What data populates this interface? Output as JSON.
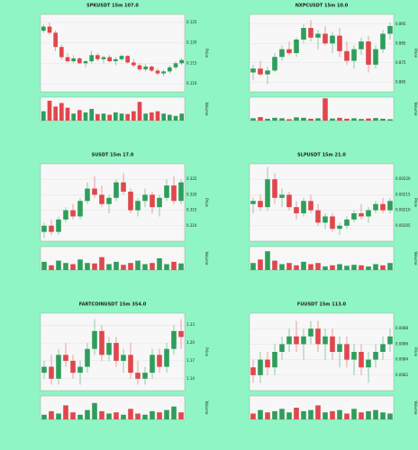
{
  "chart_data": [
    {
      "type": "candlestick",
      "title": "SPKUSDT 15m 107.0",
      "ylabel": "Price",
      "vlabel": "Volume",
      "up_color": "#2e9e5b",
      "down_color": "#e0474c",
      "grid": true,
      "ylim": [
        0.108,
        0.127
      ],
      "yticks": [
        {
          "value": 0.11,
          "label": "0.110"
        },
        {
          "value": 0.115,
          "label": "0.115"
        },
        {
          "value": 0.12,
          "label": "0.120"
        },
        {
          "value": 0.125,
          "label": "0.125"
        }
      ],
      "vlim": [
        0,
        100
      ],
      "candles": [
        [
          0.123,
          0.1245,
          0.1225,
          0.124
        ],
        [
          0.124,
          0.125,
          0.122,
          0.1225
        ],
        [
          0.1225,
          0.123,
          0.118,
          0.119
        ],
        [
          0.119,
          0.1195,
          0.116,
          0.1165
        ],
        [
          0.1165,
          0.1175,
          0.115,
          0.1155
        ],
        [
          0.1155,
          0.117,
          0.115,
          0.1162
        ],
        [
          0.1162,
          0.1165,
          0.1148,
          0.115
        ],
        [
          0.115,
          0.1158,
          0.114,
          0.1155
        ],
        [
          0.1155,
          0.118,
          0.115,
          0.117
        ],
        [
          0.117,
          0.1175,
          0.1155,
          0.116
        ],
        [
          0.116,
          0.1168,
          0.115,
          0.1165
        ],
        [
          0.1165,
          0.117,
          0.1152,
          0.1155
        ],
        [
          0.1155,
          0.1165,
          0.1145,
          0.116
        ],
        [
          0.116,
          0.1172,
          0.1155,
          0.1168
        ],
        [
          0.1168,
          0.117,
          0.115,
          0.1152
        ],
        [
          0.1152,
          0.116,
          0.114,
          0.1145
        ],
        [
          0.1145,
          0.115,
          0.113,
          0.1135
        ],
        [
          0.1135,
          0.1148,
          0.113,
          0.1142
        ],
        [
          0.1142,
          0.1145,
          0.1128,
          0.1132
        ],
        [
          0.1132,
          0.1138,
          0.112,
          0.1125
        ],
        [
          0.1125,
          0.1135,
          0.1118,
          0.113
        ],
        [
          0.113,
          0.1145,
          0.1125,
          0.114
        ],
        [
          0.114,
          0.1155,
          0.1135,
          0.115
        ],
        [
          0.115,
          0.1162,
          0.1145,
          0.1158
        ]
      ],
      "volume": [
        40,
        85,
        60,
        75,
        55,
        30,
        45,
        35,
        50,
        28,
        30,
        25,
        35,
        30,
        28,
        40,
        80,
        30,
        35,
        40,
        30,
        25,
        20,
        30
      ]
    },
    {
      "type": "candlestick",
      "title": "NXPCUSDT 15m 10.0",
      "ylabel": "Price",
      "vlabel": "Volume",
      "up_color": "#2e9e5b",
      "down_color": "#e0474c",
      "grid": true,
      "ylim": [
        0.86,
        0.9
      ],
      "yticks": [
        0.865,
        0.875,
        0.885,
        0.895
      ],
      "vlim": [
        0,
        100
      ],
      "candles": [
        [
          0.87,
          0.874,
          0.866,
          0.872
        ],
        [
          0.872,
          0.876,
          0.868,
          0.869
        ],
        [
          0.869,
          0.873,
          0.864,
          0.871
        ],
        [
          0.871,
          0.88,
          0.87,
          0.878
        ],
        [
          0.878,
          0.884,
          0.876,
          0.882
        ],
        [
          0.882,
          0.886,
          0.879,
          0.88
        ],
        [
          0.88,
          0.888,
          0.878,
          0.887
        ],
        [
          0.887,
          0.895,
          0.885,
          0.893
        ],
        [
          0.893,
          0.897,
          0.886,
          0.888
        ],
        [
          0.888,
          0.892,
          0.882,
          0.89
        ],
        [
          0.89,
          0.894,
          0.884,
          0.885
        ],
        [
          0.885,
          0.891,
          0.88,
          0.889
        ],
        [
          0.889,
          0.893,
          0.878,
          0.881
        ],
        [
          0.881,
          0.886,
          0.874,
          0.876
        ],
        [
          0.876,
          0.884,
          0.872,
          0.882
        ],
        [
          0.882,
          0.888,
          0.879,
          0.886
        ],
        [
          0.886,
          0.889,
          0.87,
          0.874
        ],
        [
          0.874,
          0.884,
          0.872,
          0.882
        ],
        [
          0.882,
          0.892,
          0.88,
          0.89
        ],
        [
          0.89,
          0.896,
          0.887,
          0.894
        ]
      ],
      "volume": [
        10,
        15,
        8,
        12,
        10,
        6,
        14,
        12,
        8,
        10,
        95,
        9,
        12,
        8,
        10,
        7,
        9,
        11,
        8,
        6
      ]
    },
    {
      "type": "candlestick",
      "title": "SUSDT 15m 17.0",
      "ylabel": "Price",
      "vlabel": "Volume",
      "up_color": "#2e9e5b",
      "down_color": "#e0474c",
      "grid": true,
      "ylim": [
        0.305,
        0.33
      ],
      "yticks": [
        {
          "value": 0.31,
          "label": "0.310"
        },
        0.315,
        {
          "value": 0.32,
          "label": "0.320"
        },
        0.325
      ],
      "vlim": [
        0,
        100
      ],
      "candles": [
        [
          0.308,
          0.311,
          0.306,
          0.31
        ],
        [
          0.31,
          0.312,
          0.307,
          0.308
        ],
        [
          0.308,
          0.313,
          0.307,
          0.312
        ],
        [
          0.312,
          0.316,
          0.311,
          0.315
        ],
        [
          0.315,
          0.317,
          0.312,
          0.313
        ],
        [
          0.313,
          0.319,
          0.312,
          0.318
        ],
        [
          0.318,
          0.324,
          0.317,
          0.322
        ],
        [
          0.322,
          0.326,
          0.319,
          0.32
        ],
        [
          0.32,
          0.323,
          0.316,
          0.317
        ],
        [
          0.317,
          0.32,
          0.314,
          0.319
        ],
        [
          0.319,
          0.325,
          0.318,
          0.324
        ],
        [
          0.324,
          0.327,
          0.32,
          0.321
        ],
        [
          0.321,
          0.322,
          0.314,
          0.315
        ],
        [
          0.315,
          0.319,
          0.313,
          0.318
        ],
        [
          0.318,
          0.322,
          0.316,
          0.32
        ],
        [
          0.32,
          0.321,
          0.314,
          0.316
        ],
        [
          0.316,
          0.32,
          0.313,
          0.319
        ],
        [
          0.319,
          0.325,
          0.318,
          0.323
        ],
        [
          0.323,
          0.326,
          0.317,
          0.318
        ],
        [
          0.318,
          0.325,
          0.317,
          0.324
        ]
      ],
      "volume": [
        35,
        20,
        40,
        30,
        25,
        45,
        30,
        28,
        55,
        25,
        35,
        22,
        30,
        40,
        25,
        30,
        50,
        25,
        35,
        28
      ]
    },
    {
      "type": "candlestick",
      "title": "SLPUSDT 15m 21.0",
      "ylabel": "Price",
      "vlabel": "Volume",
      "up_color": "#2e9e5b",
      "down_color": "#e0474c",
      "grid": true,
      "ylim": [
        0.002,
        0.00225
      ],
      "yticks": [
        0.00205,
        {
          "value": 0.0021,
          "label": "0.00210"
        },
        0.00215,
        {
          "value": 0.0022,
          "label": "0.00220"
        }
      ],
      "vlim": [
        0,
        100
      ],
      "candles": [
        [
          0.00212,
          0.00214,
          0.00209,
          0.00213
        ],
        [
          0.00213,
          0.00215,
          0.0021,
          0.00211
        ],
        [
          0.00211,
          0.00224,
          0.0021,
          0.0022
        ],
        [
          0.0022,
          0.00222,
          0.00212,
          0.00214
        ],
        [
          0.00214,
          0.00217,
          0.00211,
          0.00215
        ],
        [
          0.00215,
          0.00216,
          0.0021,
          0.00211
        ],
        [
          0.00211,
          0.00213,
          0.00207,
          0.00209
        ],
        [
          0.00209,
          0.00214,
          0.00208,
          0.00213
        ],
        [
          0.00213,
          0.00215,
          0.00209,
          0.0021
        ],
        [
          0.0021,
          0.00212,
          0.00205,
          0.00206
        ],
        [
          0.00206,
          0.00209,
          0.00204,
          0.00208
        ],
        [
          0.00208,
          0.00209,
          0.00203,
          0.00204
        ],
        [
          0.00204,
          0.00206,
          0.00202,
          0.00205
        ],
        [
          0.00205,
          0.00208,
          0.00204,
          0.00207
        ],
        [
          0.00207,
          0.0021,
          0.00206,
          0.00209
        ],
        [
          0.00209,
          0.00212,
          0.00207,
          0.00208
        ],
        [
          0.00208,
          0.00211,
          0.00206,
          0.0021
        ],
        [
          0.0021,
          0.00213,
          0.00209,
          0.00212
        ],
        [
          0.00212,
          0.00214,
          0.00209,
          0.0021
        ],
        [
          0.0021,
          0.00214,
          0.00209,
          0.00213
        ]
      ],
      "volume": [
        30,
        45,
        80,
        40,
        25,
        30,
        20,
        35,
        25,
        30,
        15,
        20,
        25,
        18,
        22,
        20,
        15,
        25,
        20,
        30
      ]
    },
    {
      "type": "candlestick",
      "title": "FARTCOINUSDT 15m 354.0",
      "ylabel": "Price",
      "vlabel": "Volume",
      "up_color": "#2e9e5b",
      "down_color": "#e0474c",
      "grid": true,
      "ylim": [
        1.12,
        1.25
      ],
      "yticks": [
        1.14,
        1.17,
        {
          "value": 1.2,
          "label": "1.20"
        },
        1.23
      ],
      "vlim": [
        0,
        100
      ],
      "candles": [
        [
          1.15,
          1.17,
          1.14,
          1.16
        ],
        [
          1.16,
          1.18,
          1.13,
          1.14
        ],
        [
          1.14,
          1.19,
          1.13,
          1.18
        ],
        [
          1.18,
          1.2,
          1.16,
          1.17
        ],
        [
          1.17,
          1.18,
          1.14,
          1.15
        ],
        [
          1.15,
          1.17,
          1.13,
          1.16
        ],
        [
          1.16,
          1.2,
          1.15,
          1.19
        ],
        [
          1.19,
          1.24,
          1.18,
          1.22
        ],
        [
          1.22,
          1.23,
          1.17,
          1.18
        ],
        [
          1.18,
          1.21,
          1.17,
          1.2
        ],
        [
          1.2,
          1.21,
          1.16,
          1.17
        ],
        [
          1.17,
          1.19,
          1.15,
          1.18
        ],
        [
          1.18,
          1.2,
          1.14,
          1.15
        ],
        [
          1.15,
          1.17,
          1.13,
          1.14
        ],
        [
          1.14,
          1.16,
          1.13,
          1.15
        ],
        [
          1.15,
          1.19,
          1.14,
          1.18
        ],
        [
          1.18,
          1.19,
          1.15,
          1.16
        ],
        [
          1.16,
          1.2,
          1.15,
          1.19
        ],
        [
          1.19,
          1.23,
          1.18,
          1.22
        ],
        [
          1.22,
          1.24,
          1.19,
          1.21
        ]
      ],
      "volume": [
        20,
        35,
        25,
        60,
        30,
        20,
        40,
        70,
        35,
        25,
        30,
        20,
        45,
        25,
        20,
        35,
        30,
        40,
        55,
        30
      ]
    },
    {
      "type": "candlestick",
      "title": "FUUSDT 15m 113.0",
      "ylabel": "Price",
      "vlabel": "Volume",
      "up_color": "#2e9e5b",
      "down_color": "#e0474c",
      "grid": true,
      "ylim": [
        0.008,
        0.009
      ],
      "yticks": [
        0.0082,
        0.0084,
        0.0086,
        0.0088
      ],
      "vlim": [
        0,
        100
      ],
      "candles": [
        [
          0.0083,
          0.0084,
          0.0081,
          0.0082
        ],
        [
          0.0082,
          0.0085,
          0.0081,
          0.0084
        ],
        [
          0.0084,
          0.0085,
          0.0082,
          0.0083
        ],
        [
          0.0083,
          0.0086,
          0.0082,
          0.0085
        ],
        [
          0.0085,
          0.0087,
          0.0084,
          0.0086
        ],
        [
          0.0086,
          0.0088,
          0.0085,
          0.0087
        ],
        [
          0.0087,
          0.0089,
          0.0085,
          0.0086
        ],
        [
          0.0086,
          0.0088,
          0.0084,
          0.0087
        ],
        [
          0.0087,
          0.0089,
          0.0086,
          0.0088
        ],
        [
          0.0088,
          0.0089,
          0.0085,
          0.0086
        ],
        [
          0.0086,
          0.0088,
          0.0084,
          0.0087
        ],
        [
          0.0087,
          0.0088,
          0.0084,
          0.0085
        ],
        [
          0.0085,
          0.0087,
          0.0083,
          0.0086
        ],
        [
          0.0086,
          0.0087,
          0.0083,
          0.0084
        ],
        [
          0.0084,
          0.0086,
          0.0082,
          0.0085
        ],
        [
          0.0085,
          0.0086,
          0.0082,
          0.0083
        ],
        [
          0.0083,
          0.0085,
          0.0081,
          0.0084
        ],
        [
          0.0084,
          0.0086,
          0.0083,
          0.0085
        ],
        [
          0.0085,
          0.0087,
          0.0084,
          0.0086
        ],
        [
          0.0086,
          0.0088,
          0.0085,
          0.0087
        ]
      ],
      "volume": [
        25,
        40,
        30,
        35,
        45,
        30,
        50,
        35,
        40,
        60,
        30,
        35,
        40,
        25,
        45,
        30,
        35,
        40,
        30,
        25
      ]
    }
  ]
}
